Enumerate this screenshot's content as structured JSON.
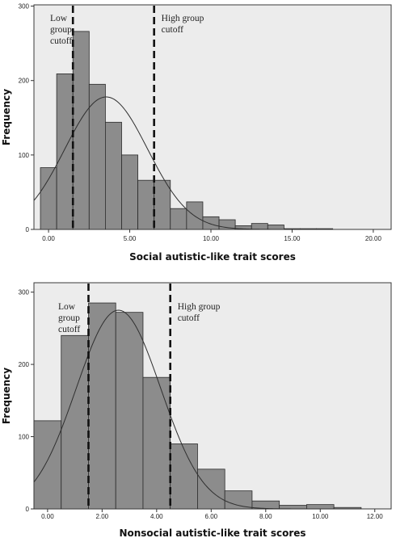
{
  "chart_data": [
    {
      "type": "bar",
      "subtype": "histogram",
      "title": "",
      "xlabel": "Social autistic-like trait scores",
      "ylabel": "Frequency",
      "xlim": [
        -0.9,
        21.1
      ],
      "ylim": [
        0,
        310
      ],
      "xticks": [
        0,
        5,
        10,
        15,
        20
      ],
      "xtick_labels": [
        "0.00",
        "5.00",
        "10.00",
        "15.00",
        "20.00"
      ],
      "yticks": [
        0,
        100,
        200,
        300
      ],
      "ytick_labels": [
        "0",
        "100",
        "200",
        "300"
      ],
      "bin_width": 1,
      "bins": [
        {
          "x0": -0.5,
          "x1": 0.5,
          "value": 83
        },
        {
          "x0": 0.5,
          "x1": 1.5,
          "value": 209
        },
        {
          "x0": 1.5,
          "x1": 2.5,
          "value": 266
        },
        {
          "x0": 2.5,
          "x1": 3.5,
          "value": 195
        },
        {
          "x0": 3.5,
          "x1": 4.5,
          "value": 144
        },
        {
          "x0": 4.5,
          "x1": 5.5,
          "value": 100
        },
        {
          "x0": 5.5,
          "x1": 6.5,
          "value": 66
        },
        {
          "x0": 6.5,
          "x1": 7.5,
          "value": 66
        },
        {
          "x0": 7.5,
          "x1": 8.5,
          "value": 28
        },
        {
          "x0": 8.5,
          "x1": 9.5,
          "value": 37
        },
        {
          "x0": 9.5,
          "x1": 10.5,
          "value": 17
        },
        {
          "x0": 10.5,
          "x1": 11.5,
          "value": 13
        },
        {
          "x0": 11.5,
          "x1": 12.5,
          "value": 5
        },
        {
          "x0": 12.5,
          "x1": 13.5,
          "value": 8
        },
        {
          "x0": 13.5,
          "x1": 14.5,
          "value": 6
        },
        {
          "x0": 14.5,
          "x1": 15.5,
          "value": 1
        },
        {
          "x0": 15.5,
          "x1": 16.5,
          "value": 1
        },
        {
          "x0": 16.5,
          "x1": 17.5,
          "value": 1
        }
      ],
      "normal_curve": {
        "mean": 3.55,
        "sd": 2.55,
        "peak": 178
      },
      "cutoffs": [
        {
          "label_lines": [
            "Low",
            "group",
            "cutoff"
          ],
          "x": 1.5,
          "label_side": "left"
        },
        {
          "label_lines": [
            "High group",
            "cutoff"
          ],
          "x": 6.5,
          "label_side": "right"
        }
      ],
      "grid": false,
      "legend": "none"
    },
    {
      "type": "bar",
      "subtype": "histogram",
      "title": "",
      "xlabel": "Nonsocial autistic-like trait scores",
      "ylabel": "Frequency",
      "xlim": [
        -0.5,
        12.6
      ],
      "ylim": [
        0,
        310
      ],
      "xticks": [
        0,
        2,
        4,
        6,
        8,
        10,
        12
      ],
      "xtick_labels": [
        "0.00",
        "2.00",
        "4.00",
        "6.00",
        "8.00",
        "10.00",
        "12.00"
      ],
      "yticks": [
        0,
        100,
        200,
        300
      ],
      "ytick_labels": [
        "0",
        "100",
        "200",
        "300"
      ],
      "bin_width": 1,
      "bins": [
        {
          "x0": -0.5,
          "x1": 0.5,
          "value": 122
        },
        {
          "x0": 0.5,
          "x1": 1.5,
          "value": 240
        },
        {
          "x0": 1.5,
          "x1": 2.5,
          "value": 285
        },
        {
          "x0": 2.5,
          "x1": 3.5,
          "value": 272
        },
        {
          "x0": 3.5,
          "x1": 4.5,
          "value": 182
        },
        {
          "x0": 4.5,
          "x1": 5.5,
          "value": 90
        },
        {
          "x0": 5.5,
          "x1": 6.5,
          "value": 55
        },
        {
          "x0": 6.5,
          "x1": 7.5,
          "value": 25
        },
        {
          "x0": 7.5,
          "x1": 8.5,
          "value": 11
        },
        {
          "x0": 8.5,
          "x1": 9.5,
          "value": 5
        },
        {
          "x0": 9.5,
          "x1": 10.5,
          "value": 6
        },
        {
          "x0": 10.5,
          "x1": 11.5,
          "value": 2
        }
      ],
      "normal_curve": {
        "mean": 2.6,
        "sd": 1.55,
        "peak": 275
      },
      "cutoffs": [
        {
          "label_lines": [
            "Low",
            "group",
            "cutoff"
          ],
          "x": 1.5,
          "label_side": "left"
        },
        {
          "label_lines": [
            "High group",
            "cutoff"
          ],
          "x": 4.5,
          "label_side": "right"
        }
      ],
      "grid": false,
      "legend": "none"
    }
  ]
}
